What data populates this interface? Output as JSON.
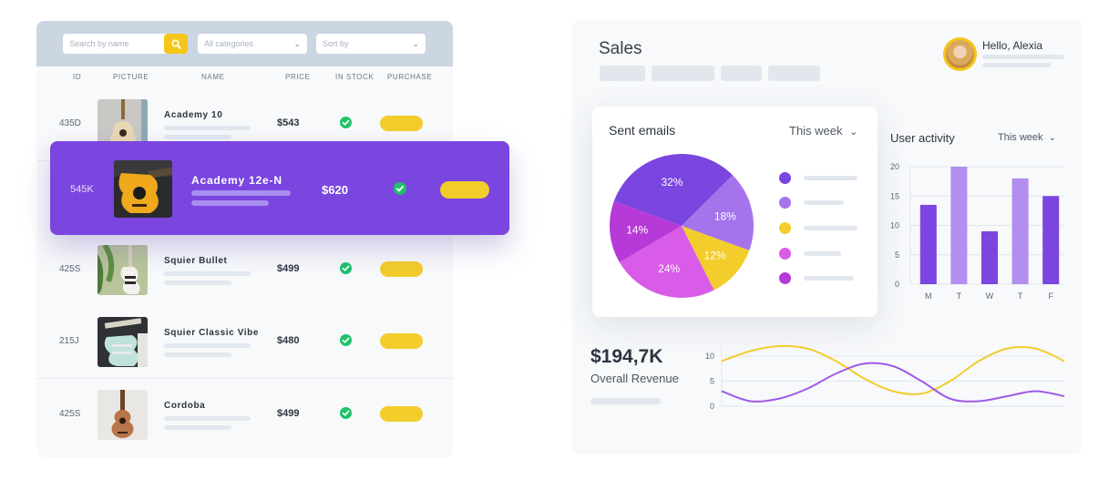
{
  "products": {
    "search_placeholder": "Search by name",
    "category_select": "All categories",
    "sort_select": "Sort by",
    "columns": [
      "ID",
      "PICTURE",
      "NAME",
      "PRICE",
      "IN STOCK",
      "PURCHASE"
    ],
    "rows": [
      {
        "id": "435D",
        "name": "Academy 10",
        "price": "$543"
      },
      {
        "id": "425S",
        "name": "Squier Bullet",
        "price": "$499"
      },
      {
        "id": "215J",
        "name": "Squier Classic Vibe",
        "price": "$480"
      },
      {
        "id": "425S",
        "name": "Cordoba",
        "price": "$499"
      }
    ],
    "highlighted": {
      "id": "545K",
      "name": "Academy 12e-N",
      "price": "$620"
    }
  },
  "sales": {
    "title": "Sales",
    "greeting": "Hello, Alexia",
    "sent_emails": {
      "title": "Sent emails",
      "period": "This week"
    },
    "user_activity": {
      "title": "User activity",
      "period": "This week"
    },
    "revenue": {
      "value": "$194,7K",
      "label": "Overall Revenue"
    }
  },
  "colors": {
    "purple": "#7b45e0",
    "light_purple": "#a98ef0",
    "yellow": "#f2cd2c",
    "magenta": "#d85ce8",
    "deep_magenta": "#b63ad8",
    "green": "#21c26b"
  },
  "chart_data": [
    {
      "type": "pie",
      "title": "Sent emails",
      "labels": [
        "32%",
        "18%",
        "12%",
        "24%",
        "14%"
      ],
      "values": [
        32,
        18,
        12,
        24,
        14
      ],
      "colors": [
        "#7b45e0",
        "#a573ec",
        "#f2cd2c",
        "#d85ce8",
        "#b63ad8"
      ]
    },
    {
      "type": "bar",
      "title": "User activity",
      "categories": [
        "M",
        "T",
        "W",
        "T",
        "F"
      ],
      "values": [
        13.5,
        20,
        9,
        18,
        15
      ],
      "colors": [
        "#7b45e0",
        "#b18ef0",
        "#7b45e0",
        "#b18ef0",
        "#7b45e0"
      ],
      "yticks": [
        0,
        5,
        10,
        15,
        20
      ],
      "ylim": [
        0,
        20
      ],
      "grid": true
    },
    {
      "type": "line",
      "title": "",
      "yticks": [
        0,
        5,
        10
      ],
      "ylim": [
        0,
        12
      ],
      "x": [
        0,
        1,
        2,
        3,
        4,
        5,
        6,
        7,
        8,
        9,
        10,
        11,
        12
      ],
      "series": [
        {
          "values": [
            9,
            11,
            12,
            11.5,
            9,
            5.5,
            3,
            2.5,
            5,
            9,
            11.5,
            11.5,
            9
          ],
          "color": "#f2cd2c"
        },
        {
          "values": [
            3,
            1,
            1.5,
            3.5,
            6.5,
            8.5,
            8,
            5,
            1.5,
            1,
            2,
            3,
            2
          ],
          "color": "#9e5be8"
        }
      ]
    }
  ]
}
